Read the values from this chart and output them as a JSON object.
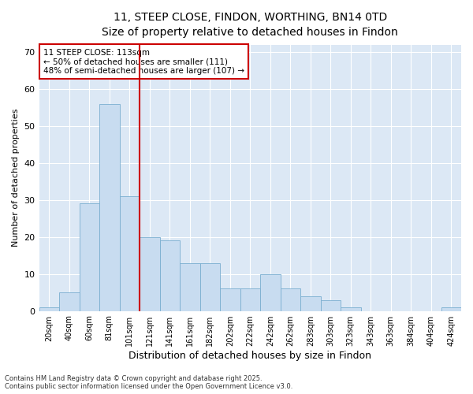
{
  "title_line1": "11, STEEP CLOSE, FINDON, WORTHING, BN14 0TD",
  "title_line2": "Size of property relative to detached houses in Findon",
  "xlabel": "Distribution of detached houses by size in Findon",
  "ylabel": "Number of detached properties",
  "categories": [
    "20sqm",
    "40sqm",
    "60sqm",
    "81sqm",
    "101sqm",
    "121sqm",
    "141sqm",
    "161sqm",
    "182sqm",
    "202sqm",
    "222sqm",
    "242sqm",
    "262sqm",
    "283sqm",
    "303sqm",
    "323sqm",
    "343sqm",
    "363sqm",
    "384sqm",
    "404sqm",
    "424sqm"
  ],
  "values": [
    1,
    5,
    29,
    56,
    31,
    20,
    19,
    13,
    13,
    6,
    6,
    10,
    6,
    4,
    3,
    1,
    0,
    0,
    0,
    0,
    1
  ],
  "bar_color": "#c8dcf0",
  "bar_edge_color": "#7aaed0",
  "vline_color": "#cc0000",
  "annotation_title": "11 STEEP CLOSE: 113sqm",
  "annotation_line2": "← 50% of detached houses are smaller (111)",
  "annotation_line3": "48% of semi-detached houses are larger (107) →",
  "annotation_box_color": "#cc0000",
  "ylim": [
    0,
    72
  ],
  "yticks": [
    0,
    10,
    20,
    30,
    40,
    50,
    60,
    70
  ],
  "fig_background": "#ffffff",
  "plot_background": "#dce8f5",
  "grid_color": "#ffffff",
  "footer_line1": "Contains HM Land Registry data © Crown copyright and database right 2025.",
  "footer_line2": "Contains public sector information licensed under the Open Government Licence v3.0."
}
